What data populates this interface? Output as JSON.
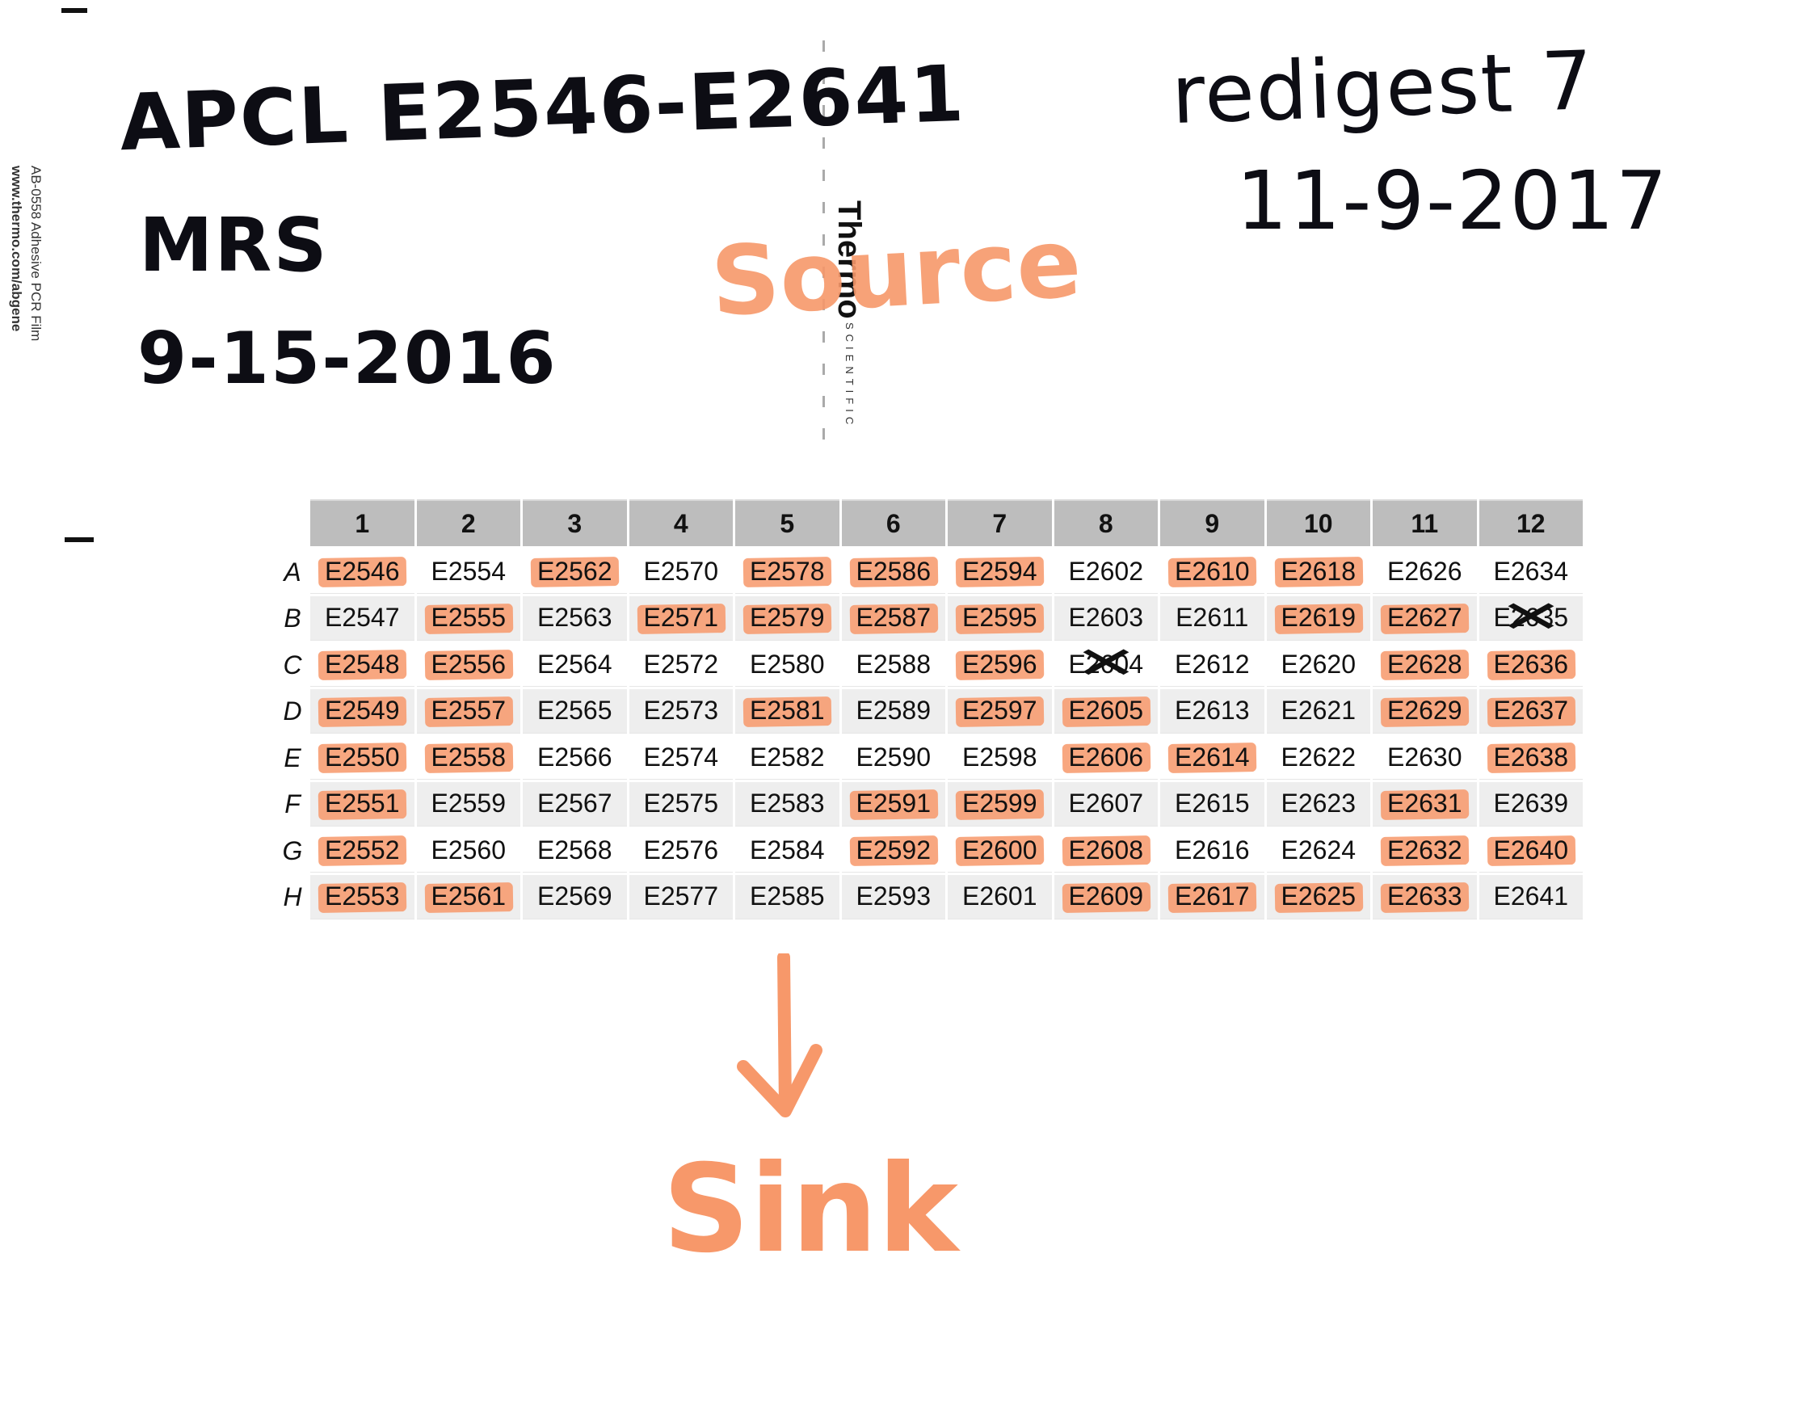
{
  "film_label": {
    "product": "AB-0558 Adhesive PCR Film",
    "website": "www.thermo.com/abgene",
    "brand": "Thermo",
    "brand_sub": "SCIENTIFIC"
  },
  "handwriting": {
    "plate_id": "APCL E2546-E2641",
    "initials": "MRS",
    "date_original": "9-15-2016",
    "note": "redigest 7",
    "date_redigest": "11-9-2017",
    "source_label": "Source",
    "sink_label": "Sink",
    "arrow": "down-arrow-icon"
  },
  "colors": {
    "highlight": "#f7986a",
    "header_bg": "#bdbdbd",
    "ink": "#0d0d14"
  },
  "plate": {
    "columns": [
      "1",
      "2",
      "3",
      "4",
      "5",
      "6",
      "7",
      "8",
      "9",
      "10",
      "11",
      "12"
    ],
    "rows": [
      {
        "label": "A",
        "cells": [
          "E2546",
          "E2554",
          "E2562",
          "E2570",
          "E2578",
          "E2586",
          "E2594",
          "E2602",
          "E2610",
          "E2618",
          "E2626",
          "E2634"
        ],
        "highlighted": [
          true,
          false,
          true,
          false,
          true,
          true,
          true,
          false,
          true,
          true,
          false,
          false
        ],
        "crossed": [
          false,
          false,
          false,
          false,
          false,
          false,
          false,
          false,
          false,
          false,
          false,
          false
        ]
      },
      {
        "label": "B",
        "cells": [
          "E2547",
          "E2555",
          "E2563",
          "E2571",
          "E2579",
          "E2587",
          "E2595",
          "E2603",
          "E2611",
          "E2619",
          "E2627",
          "E2635"
        ],
        "highlighted": [
          false,
          true,
          false,
          true,
          true,
          true,
          true,
          false,
          false,
          true,
          true,
          false
        ],
        "crossed": [
          false,
          false,
          false,
          false,
          false,
          false,
          false,
          false,
          false,
          false,
          false,
          true
        ]
      },
      {
        "label": "C",
        "cells": [
          "E2548",
          "E2556",
          "E2564",
          "E2572",
          "E2580",
          "E2588",
          "E2596",
          "E2604",
          "E2612",
          "E2620",
          "E2628",
          "E2636"
        ],
        "highlighted": [
          true,
          true,
          false,
          false,
          false,
          false,
          true,
          false,
          false,
          false,
          true,
          true
        ],
        "crossed": [
          false,
          false,
          false,
          false,
          false,
          false,
          false,
          true,
          false,
          false,
          false,
          false
        ]
      },
      {
        "label": "D",
        "cells": [
          "E2549",
          "E2557",
          "E2565",
          "E2573",
          "E2581",
          "E2589",
          "E2597",
          "E2605",
          "E2613",
          "E2621",
          "E2629",
          "E2637"
        ],
        "highlighted": [
          true,
          true,
          false,
          false,
          true,
          false,
          true,
          true,
          false,
          false,
          true,
          true
        ],
        "crossed": [
          false,
          false,
          false,
          false,
          false,
          false,
          false,
          false,
          false,
          false,
          false,
          false
        ]
      },
      {
        "label": "E",
        "cells": [
          "E2550",
          "E2558",
          "E2566",
          "E2574",
          "E2582",
          "E2590",
          "E2598",
          "E2606",
          "E2614",
          "E2622",
          "E2630",
          "E2638"
        ],
        "highlighted": [
          true,
          true,
          false,
          false,
          false,
          false,
          false,
          true,
          true,
          false,
          false,
          true
        ],
        "crossed": [
          false,
          false,
          false,
          false,
          false,
          false,
          false,
          false,
          false,
          false,
          false,
          false
        ]
      },
      {
        "label": "F",
        "cells": [
          "E2551",
          "E2559",
          "E2567",
          "E2575",
          "E2583",
          "E2591",
          "E2599",
          "E2607",
          "E2615",
          "E2623",
          "E2631",
          "E2639"
        ],
        "highlighted": [
          true,
          false,
          false,
          false,
          false,
          true,
          true,
          false,
          false,
          false,
          true,
          false
        ],
        "crossed": [
          false,
          false,
          false,
          false,
          false,
          false,
          false,
          false,
          false,
          false,
          false,
          false
        ]
      },
      {
        "label": "G",
        "cells": [
          "E2552",
          "E2560",
          "E2568",
          "E2576",
          "E2584",
          "E2592",
          "E2600",
          "E2608",
          "E2616",
          "E2624",
          "E2632",
          "E2640"
        ],
        "highlighted": [
          true,
          false,
          false,
          false,
          false,
          true,
          true,
          true,
          false,
          false,
          true,
          true
        ],
        "crossed": [
          false,
          false,
          false,
          false,
          false,
          false,
          false,
          false,
          false,
          false,
          false,
          false
        ]
      },
      {
        "label": "H",
        "cells": [
          "E2553",
          "E2561",
          "E2569",
          "E2577",
          "E2585",
          "E2593",
          "E2601",
          "E2609",
          "E2617",
          "E2625",
          "E2633",
          "E2641"
        ],
        "highlighted": [
          true,
          true,
          false,
          false,
          false,
          false,
          false,
          true,
          true,
          true,
          true,
          false
        ],
        "crossed": [
          false,
          false,
          false,
          false,
          false,
          false,
          false,
          false,
          false,
          false,
          false,
          false
        ]
      }
    ]
  }
}
